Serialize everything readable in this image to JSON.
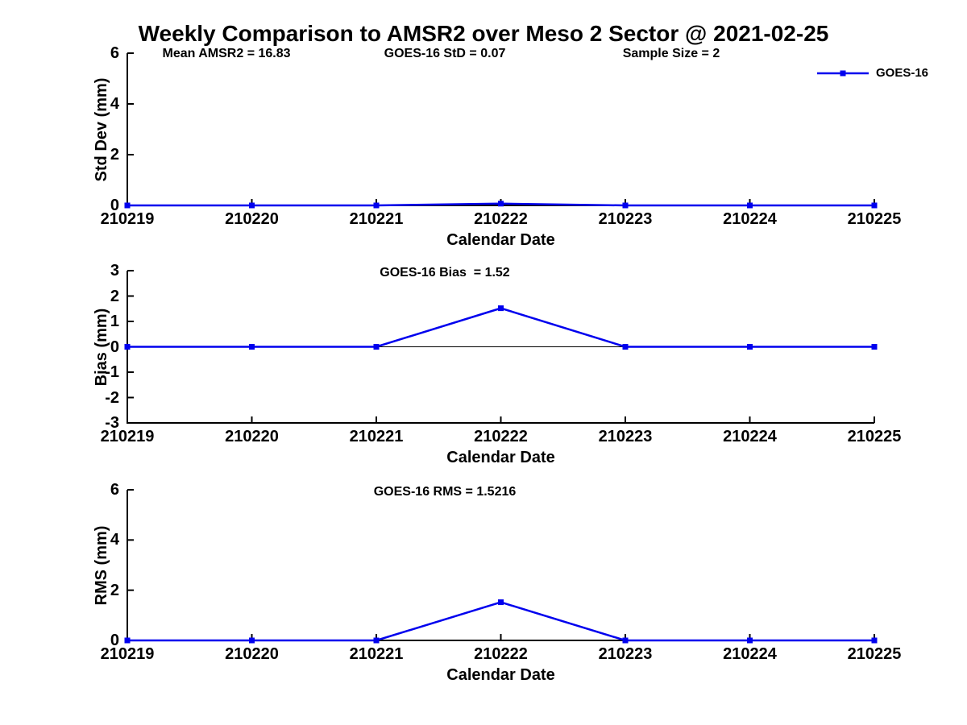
{
  "figure": {
    "title": "Weekly Comparison to AMSR2 over Meso 2 Sector @ 2021-02-25",
    "background": "#ffffff",
    "series_color": "#0000EE",
    "axis_color": "#000000",
    "annotations": [
      {
        "text": "Mean AMSR2 = 16.83"
      },
      {
        "text": "GOES-16 StD = 0.07"
      },
      {
        "text": "Sample Size = 2"
      }
    ],
    "legend": {
      "label": "GOES-16",
      "marker": "filled-square"
    }
  },
  "chart_data": [
    {
      "type": "line",
      "title": "",
      "ylabel": "Std Dev (mm)",
      "xlabel": "Calendar Date",
      "categories": [
        "210219",
        "210220",
        "210221",
        "210222",
        "210223",
        "210224",
        "210225"
      ],
      "series": [
        {
          "name": "GOES-16",
          "color": "#0000EE",
          "marker": "square",
          "values": [
            0,
            0,
            0,
            0.07,
            0,
            0,
            0
          ]
        }
      ],
      "ylim": [
        0,
        6
      ],
      "yticks": [
        0,
        2,
        4,
        6
      ],
      "zero_line": false,
      "grid": false,
      "legend_position": "top-right"
    },
    {
      "type": "line",
      "title": "GOES-16 Bias  = 1.52",
      "ylabel": "Bias (mm)",
      "xlabel": "Calendar Date",
      "categories": [
        "210219",
        "210220",
        "210221",
        "210222",
        "210223",
        "210224",
        "210225"
      ],
      "series": [
        {
          "name": "GOES-16",
          "color": "#0000EE",
          "marker": "square",
          "values": [
            0,
            0,
            0,
            1.52,
            0,
            0,
            0
          ]
        }
      ],
      "ylim": [
        -3,
        3
      ],
      "yticks": [
        -3,
        -2,
        -1,
        0,
        1,
        2,
        3
      ],
      "zero_line": true,
      "grid": false,
      "legend_position": "none"
    },
    {
      "type": "line",
      "title": "GOES-16 RMS = 1.5216",
      "ylabel": "RMS (mm)",
      "xlabel": "Calendar Date",
      "categories": [
        "210219",
        "210220",
        "210221",
        "210222",
        "210223",
        "210224",
        "210225"
      ],
      "series": [
        {
          "name": "GOES-16",
          "color": "#0000EE",
          "marker": "square",
          "values": [
            0,
            0,
            0,
            1.5216,
            0,
            0,
            0
          ]
        }
      ],
      "ylim": [
        0,
        6
      ],
      "yticks": [
        0,
        2,
        4,
        6
      ],
      "zero_line": false,
      "grid": false,
      "legend_position": "none"
    }
  ]
}
